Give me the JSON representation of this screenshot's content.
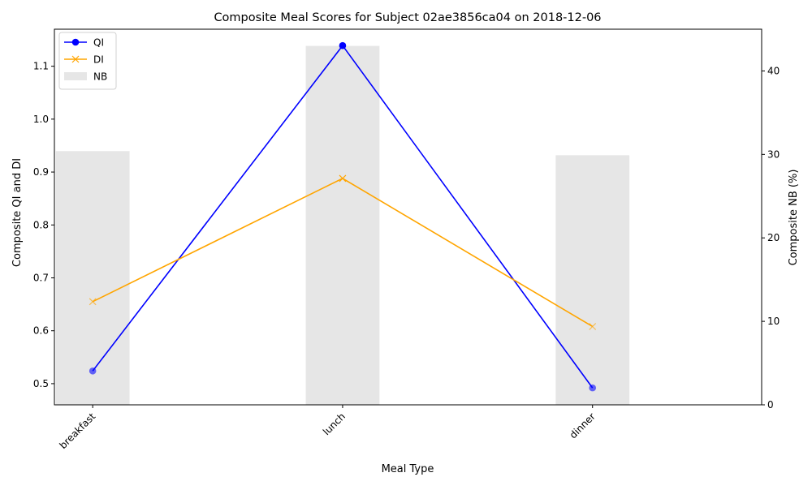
{
  "chart_data": {
    "type": "line",
    "title": "Composite Meal Scores for Subject 02ae3856ca04 on 2018-12-06",
    "xlabel": "Meal Type",
    "ylabel_left": "Composite QI and DI",
    "ylabel_right": "Composite NB (%)",
    "categories": [
      "breakfast",
      "lunch",
      "dinner"
    ],
    "left_ylim": [
      0.46,
      1.17
    ],
    "left_yticks": [
      "0.5",
      "0.6",
      "0.7",
      "0.8",
      "0.9",
      "1.0",
      "1.1"
    ],
    "right_ylim": [
      0,
      45
    ],
    "right_yticks": [
      "0",
      "10",
      "20",
      "30",
      "40"
    ],
    "legend_position": "top-left",
    "series": [
      {
        "name": "QI",
        "axis": "left",
        "kind": "line",
        "marker": "circle",
        "color": "#0000ff",
        "values": [
          0.524,
          1.139,
          0.492
        ]
      },
      {
        "name": "DI",
        "axis": "left",
        "kind": "line",
        "marker": "x",
        "color": "#ffa500",
        "values": [
          0.655,
          0.888,
          0.608
        ]
      },
      {
        "name": "NB",
        "axis": "right",
        "kind": "bar",
        "color": "#e6e6e6",
        "values": [
          30.4,
          43.0,
          29.9
        ]
      }
    ]
  }
}
